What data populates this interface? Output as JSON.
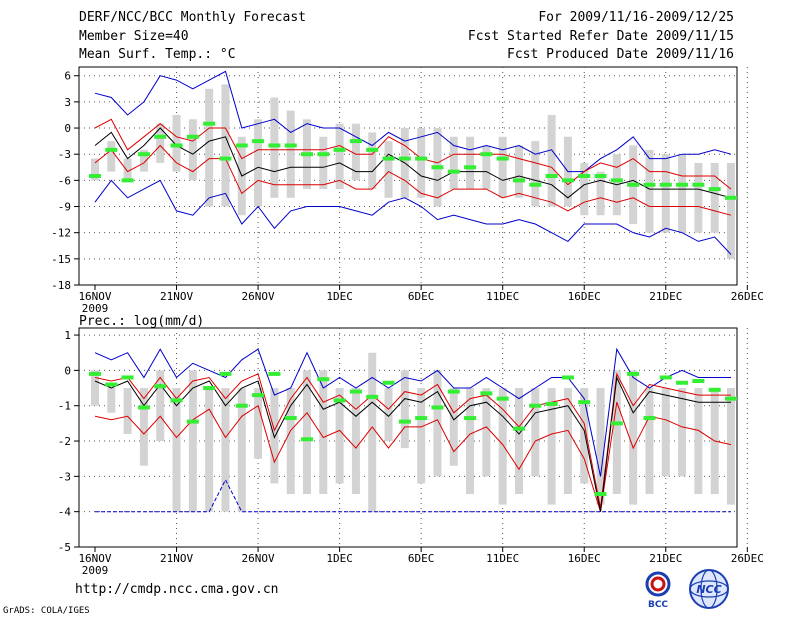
{
  "header": {
    "title": "DERF/NCC/BCC Monthly Forecast",
    "member_size": "Member Size=40",
    "variable1": "Mean Surf. Temp.: °C",
    "for_range": "For 2009/11/16-2009/12/25",
    "fcst_started": "Fcst Started Refer Date 2009/11/15",
    "fcst_produced": "Fcst Produced Date 2009/11/16"
  },
  "footer": {
    "url": "http://cmdp.ncc.cma.gov.cn",
    "credit": "GrADS: COLA/IGES",
    "logo1_text": "BCC",
    "logo2_text": "NCC"
  },
  "colors": {
    "box": "#d3d3d3",
    "ensemble_max_min": "#0000cc",
    "spread": "#dd0000",
    "mean": "#000000",
    "obs_median": "#33ee33",
    "grid": "#555555"
  },
  "chart_data": [
    {
      "type": "box-ensemble",
      "title": "Mean Surf. Temp.: °C",
      "x_tick_labels": [
        "16NOV",
        "21NOV",
        "26NOV",
        "1DEC",
        "6DEC",
        "11DEC",
        "16DEC",
        "21DEC",
        "26DEC"
      ],
      "x_sub_label": "2009",
      "ylim": [
        -18,
        7
      ],
      "y_ticks": [
        -18,
        -15,
        -12,
        -9,
        -6,
        -3,
        0,
        3,
        6
      ],
      "days": 40,
      "box_top": [
        -3.5,
        -1.5,
        -3.5,
        -2.5,
        0.5,
        1.5,
        1,
        4.5,
        5,
        -1,
        1,
        3.5,
        2,
        1,
        -1,
        0.5,
        0.5,
        -0.5,
        -1.5,
        0,
        0,
        0,
        -1,
        -1,
        -2,
        -1,
        -2,
        -1.5,
        1.5,
        -1,
        -4,
        -5,
        -3,
        -2,
        -2.5,
        -3,
        -3,
        -4,
        -4,
        -4
      ],
      "box_bot": [
        -6,
        -5,
        -6,
        -5,
        -4,
        -5,
        -6,
        -9,
        -9,
        -10,
        -9,
        -8,
        -8,
        -7,
        -7,
        -7,
        -6,
        -7,
        -8,
        -8,
        -8,
        -9,
        -7,
        -7,
        -7,
        -8,
        -8,
        -9,
        -9,
        -9,
        -10,
        -10,
        -10,
        -11,
        -12,
        -12,
        -12,
        -12,
        -12,
        -15
      ],
      "upper_blue": [
        4,
        3.5,
        1.5,
        3,
        6,
        5.5,
        4.5,
        5.5,
        6.5,
        0,
        0.5,
        1,
        -0.5,
        0.5,
        0,
        0,
        -1,
        -2,
        -0.5,
        -1.5,
        -1,
        -0.5,
        -2,
        -2.5,
        -2,
        -2.5,
        -2,
        -3,
        -2.5,
        -5,
        -5,
        -3.5,
        -2.5,
        -1,
        -3.5,
        -3.5,
        -3,
        -3,
        -2.5,
        -3
      ],
      "upper_red": [
        0,
        1,
        -2.5,
        -1,
        0.5,
        -1,
        -1.5,
        0,
        0,
        -3.5,
        -2.5,
        -2.5,
        -2.5,
        -2.5,
        -2.5,
        -2,
        -3,
        -3,
        -1,
        -2,
        -3.5,
        -4,
        -3,
        -3,
        -3,
        -3,
        -3.5,
        -4,
        -4.5,
        -6.5,
        -5,
        -4,
        -4.5,
        -3.5,
        -5,
        -5,
        -5.5,
        -5.5,
        -5.5,
        -7
      ],
      "mean": [
        -2,
        -0.5,
        -3.5,
        -2,
        0,
        -2,
        -3,
        -1.5,
        -1,
        -5.5,
        -4.5,
        -5,
        -4.5,
        -4.5,
        -4.5,
        -4,
        -5,
        -5,
        -3,
        -4,
        -5.5,
        -6,
        -5,
        -5,
        -5,
        -6,
        -5.5,
        -6,
        -6.5,
        -8,
        -6.5,
        -6,
        -6.5,
        -6,
        -7,
        -7,
        -7,
        -7,
        -7.5,
        -8
      ],
      "lower_red": [
        -4,
        -2.5,
        -5,
        -4,
        -2,
        -4,
        -5,
        -3.5,
        -3.5,
        -7.5,
        -6,
        -6.5,
        -6.5,
        -6.5,
        -6.5,
        -6,
        -7,
        -7,
        -5,
        -6,
        -7.5,
        -8,
        -7,
        -7,
        -7,
        -8,
        -7.5,
        -8,
        -8.5,
        -9.5,
        -8.5,
        -8,
        -8.5,
        -8,
        -9,
        -9,
        -9,
        -9,
        -9.5,
        -10
      ],
      "lower_blue": [
        -8.5,
        -6,
        -8,
        -7,
        -6,
        -9.5,
        -10,
        -8,
        -7.5,
        -11,
        -9,
        -11.5,
        -9.5,
        -9,
        -9,
        -9,
        -9.5,
        -10,
        -8.5,
        -8,
        -9,
        -10.5,
        -10,
        -10.5,
        -11,
        -11,
        -10.5,
        -11,
        -12,
        -13,
        -11,
        -11,
        -11,
        -12,
        -12.5,
        -11.5,
        -12,
        -13,
        -12.5,
        -14.5
      ],
      "obs_median": [
        -5.5,
        -2.5,
        -6,
        -3,
        -1,
        -2,
        -1,
        0.5,
        -3.5,
        -2,
        -1.5,
        -2,
        -2,
        -3,
        -3,
        -2.5,
        -1.5,
        -2.5,
        -3.5,
        -3.5,
        -3.5,
        -4.5,
        -5,
        -4.5,
        -3,
        -3.5,
        -6,
        -6.5,
        -5.5,
        -6,
        -5.5,
        -5.5,
        -6,
        -6.5,
        -6.5,
        -6.5,
        -6.5,
        -6.5,
        -7,
        -8
      ]
    },
    {
      "type": "box-ensemble",
      "title": "Prec.: log(mm/d)",
      "x_tick_labels": [
        "16NOV",
        "21NOV",
        "26NOV",
        "1DEC",
        "6DEC",
        "11DEC",
        "16DEC",
        "21DEC",
        "26DEC"
      ],
      "x_sub_label": "2009",
      "ylim": [
        -5,
        1.2
      ],
      "y_ticks": [
        -5,
        -4,
        -3,
        -2,
        -1,
        0,
        1
      ],
      "days": 40,
      "box_top": [
        0,
        -0.5,
        -0.5,
        -0.5,
        0,
        -0.5,
        0,
        -0.5,
        -0.5,
        -0.5,
        -0.5,
        -0.5,
        -0.5,
        0,
        0,
        -0.5,
        -0.5,
        0.5,
        -0.5,
        0,
        -0.5,
        0,
        -0.5,
        -0.5,
        -0.5,
        -0.5,
        -0.5,
        -0.5,
        -0.5,
        -0.5,
        -0.5,
        -0.5,
        0,
        0,
        -0.5,
        -0.5,
        -0.5,
        -0.5,
        -0.5,
        -0.5
      ],
      "box_bot": [
        -1,
        -1.2,
        -1.8,
        -2.7,
        -2,
        -4,
        -4,
        -4,
        -4,
        -4,
        -2.5,
        -3.2,
        -3.5,
        -3.5,
        -3.5,
        -3.2,
        -3.5,
        -4,
        -2,
        -2.2,
        -3.2,
        -3,
        -2.7,
        -3.5,
        -3,
        -3.8,
        -3.5,
        -3,
        -3.8,
        -3.5,
        -3.2,
        -3.8,
        -3.5,
        -3.8,
        -3.5,
        -3,
        -3,
        -3.5,
        -3.5,
        -3.8
      ],
      "upper_blue": [
        0.5,
        0.3,
        0.5,
        -0.2,
        0.6,
        -0.2,
        0.2,
        0,
        -0.2,
        0.3,
        0.6,
        -0.7,
        -0.5,
        0.5,
        -0.5,
        -0.2,
        -0.5,
        -0.2,
        -0.5,
        -0.2,
        -0.3,
        0,
        -0.5,
        -0.5,
        -0.2,
        -0.5,
        -0.8,
        -0.5,
        -0.2,
        -0.2,
        -0.8,
        -3,
        0.6,
        -0.2,
        -0.5,
        -0.2,
        0,
        -0.2,
        -0.2,
        -0.2
      ],
      "upper_red": [
        -0.2,
        -0.3,
        -0.2,
        -0.8,
        -0.2,
        -0.8,
        -0.3,
        -0.2,
        -0.8,
        -0.3,
        -0.1,
        -1.7,
        -0.8,
        -0.2,
        -0.9,
        -0.7,
        -1.1,
        -0.7,
        -1.1,
        -0.6,
        -0.7,
        -0.4,
        -1.2,
        -0.8,
        -0.7,
        -1.1,
        -1.6,
        -1.0,
        -0.9,
        -0.8,
        -1.5,
        -3.9,
        -0.1,
        -1.0,
        -0.4,
        -0.5,
        -0.6,
        -0.7,
        -0.7,
        -0.7
      ],
      "mean": [
        -0.3,
        -0.5,
        -0.3,
        -1,
        -0.4,
        -1.0,
        -0.5,
        -0.3,
        -1,
        -0.5,
        -0.3,
        -1.9,
        -1,
        -0.4,
        -1.1,
        -0.9,
        -1.3,
        -0.9,
        -1.3,
        -0.8,
        -0.9,
        -0.6,
        -1.4,
        -1,
        -0.9,
        -1.3,
        -1.8,
        -1.2,
        -1.1,
        -1,
        -1.7,
        -4,
        -0.2,
        -1.2,
        -0.6,
        -0.7,
        -0.8,
        -0.9,
        -0.9,
        -0.9
      ],
      "lower_red": [
        -1.3,
        -1.4,
        -1.3,
        -1.8,
        -1.3,
        -1.9,
        -1.4,
        -1.1,
        -1.9,
        -1.3,
        -1.0,
        -2.6,
        -1.7,
        -1.2,
        -1.9,
        -1.7,
        -2.2,
        -1.6,
        -2.2,
        -1.6,
        -1.6,
        -1.4,
        -2.3,
        -1.8,
        -1.6,
        -2.1,
        -2.8,
        -2.0,
        -1.8,
        -1.7,
        -2.5,
        -4,
        -0.9,
        -2.2,
        -1.3,
        -1.4,
        -1.6,
        -1.7,
        -2.0,
        -2.1
      ],
      "lower_blue": [
        -4,
        -4,
        -4,
        -4,
        -4,
        -4,
        -4,
        -4,
        -3.1,
        -4,
        -4,
        -4,
        -4,
        -4,
        -4,
        -4,
        -4,
        -4,
        -4,
        -4,
        -4,
        -4,
        -4,
        -4,
        -4,
        -4,
        -4,
        -4,
        -4,
        -4,
        -4,
        -4,
        -4,
        -4,
        -4,
        -4,
        -4,
        -4,
        -4,
        -4
      ],
      "obs_median": [
        -0.1,
        -0.4,
        -0.2,
        -1.05,
        -0.45,
        -0.85,
        -1.45,
        -0.5,
        -0.1,
        -1,
        -0.7,
        -0.1,
        -1.35,
        -1.95,
        -0.25,
        -0.85,
        -0.6,
        -0.75,
        -0.35,
        -1.45,
        -1.35,
        -1.05,
        -0.6,
        -1.35,
        -0.65,
        -0.8,
        -1.65,
        -1,
        -0.95,
        -0.2,
        -0.9,
        -3.5,
        -1.5,
        -0.1,
        -1.35,
        -0.2,
        -0.35,
        -0.3,
        -0.55,
        -0.8
      ]
    }
  ]
}
